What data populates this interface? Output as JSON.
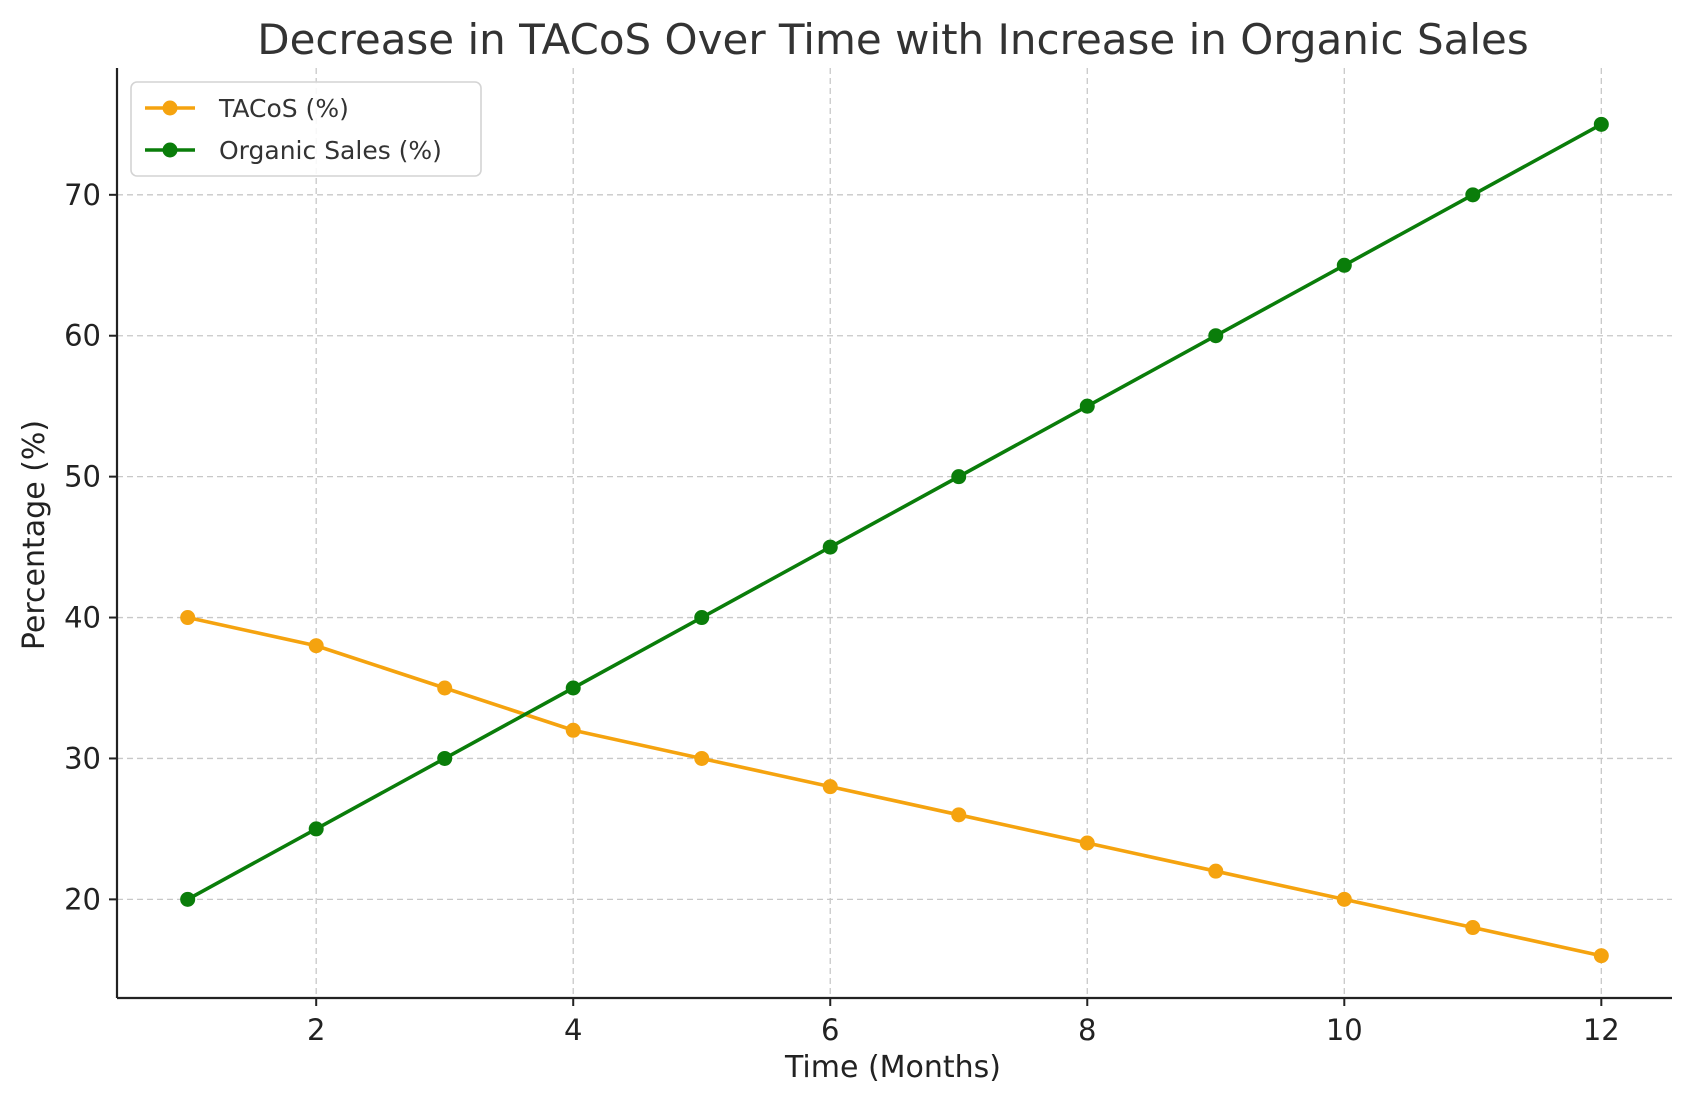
{
  "chart_data": {
    "type": "line",
    "title": "Decrease in TACoS Over Time with Increase in Organic Sales",
    "xlabel": "Time (Months)",
    "ylabel": "Percentage (%)",
    "x": [
      1,
      2,
      3,
      4,
      5,
      6,
      7,
      8,
      9,
      10,
      11,
      12
    ],
    "xlim": [
      0.45,
      12.55
    ],
    "ylim": [
      13,
      79
    ],
    "xticks": [
      2,
      4,
      6,
      8,
      10,
      12
    ],
    "yticks": [
      20,
      30,
      40,
      50,
      60,
      70
    ],
    "grid": true,
    "legend_position": "top-left",
    "series": [
      {
        "name": "TACoS (%)",
        "color": "#f5a30f",
        "marker": "circle",
        "values": [
          40,
          38,
          35,
          32,
          30,
          28,
          26,
          24,
          22,
          20,
          18,
          16
        ]
      },
      {
        "name": "Organic Sales (%)",
        "color": "#0a7d0a",
        "marker": "circle",
        "values": [
          20,
          25,
          30,
          35,
          40,
          45,
          50,
          55,
          60,
          65,
          70,
          75
        ]
      }
    ]
  }
}
